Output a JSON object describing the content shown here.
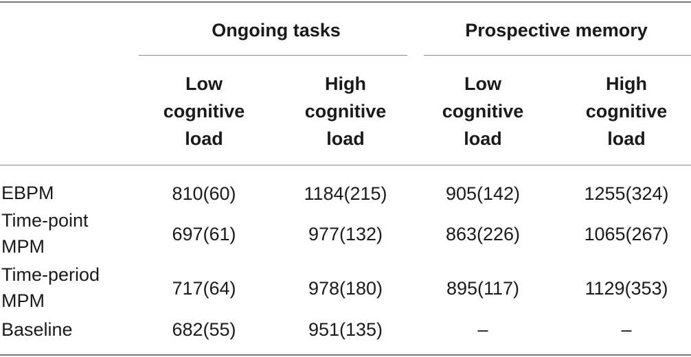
{
  "table": {
    "group_headers": [
      "Ongoing tasks",
      "Prospective memory"
    ],
    "sub_headers": [
      [
        "Low",
        "cognitive",
        "load"
      ],
      [
        "High",
        "cognitive",
        "load"
      ],
      [
        "Low",
        "cognitive",
        "load"
      ],
      [
        "High",
        "cognitive",
        "load"
      ]
    ],
    "rows": [
      {
        "label": [
          "EBPM"
        ],
        "cells": [
          "810(60)",
          "1184(215)",
          "905(142)",
          "1255(324)"
        ]
      },
      {
        "label": [
          "Time-point",
          "MPM"
        ],
        "cells": [
          "697(61)",
          "977(132)",
          "863(226)",
          "1065(267)"
        ]
      },
      {
        "label": [
          "Time-period",
          "MPM"
        ],
        "cells": [
          "717(64)",
          "978(180)",
          "895(117)",
          "1129(353)"
        ]
      },
      {
        "label": [
          "Baseline"
        ],
        "cells": [
          "682(55)",
          "951(135)",
          "–",
          "–"
        ]
      }
    ]
  }
}
